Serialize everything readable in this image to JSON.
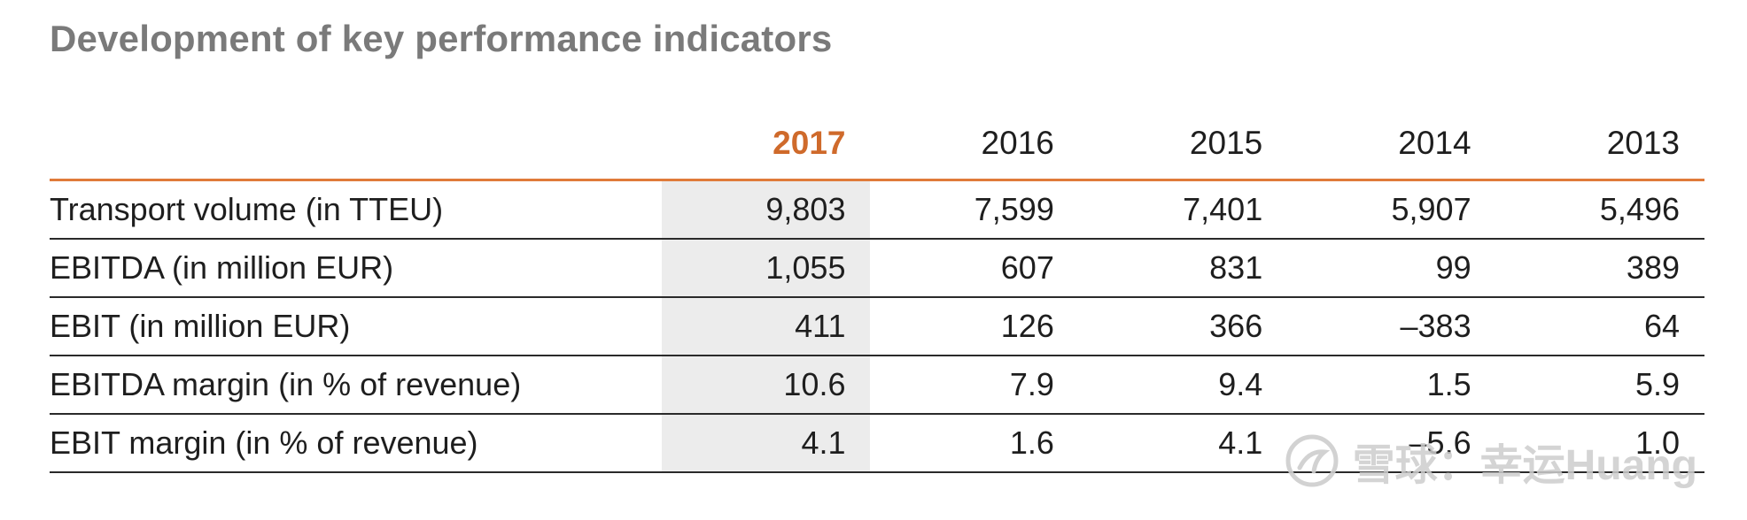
{
  "title": "Development of key performance indicators",
  "table": {
    "label_header": "",
    "years": [
      "2017",
      "2016",
      "2015",
      "2014",
      "2013"
    ],
    "rows": [
      {
        "label": "Transport volume (in TTEU)",
        "values": [
          "9,803",
          "7,599",
          "7,401",
          "5,907",
          "5,496"
        ]
      },
      {
        "label": "EBITDA (in million EUR)",
        "values": [
          "1,055",
          "607",
          "831",
          "99",
          "389"
        ]
      },
      {
        "label": "EBIT (in million EUR)",
        "values": [
          "411",
          "126",
          "366",
          "–383",
          "64"
        ]
      },
      {
        "label": "EBITDA margin (in % of revenue)",
        "values": [
          "10.6",
          "7.9",
          "9.4",
          "1.5",
          "5.9"
        ]
      },
      {
        "label": "EBIT margin (in % of revenue)",
        "values": [
          "4.1",
          "1.6",
          "4.1",
          "–5.6",
          "1.0"
        ]
      }
    ]
  },
  "colors": {
    "accent": "#cf6a2b",
    "rule": "#e07b3a",
    "highlight_column": "#ececec",
    "title": "#7a7a7a"
  },
  "watermark": {
    "text": "雪球：幸运Huang",
    "icon": "snowball-logo-icon"
  }
}
